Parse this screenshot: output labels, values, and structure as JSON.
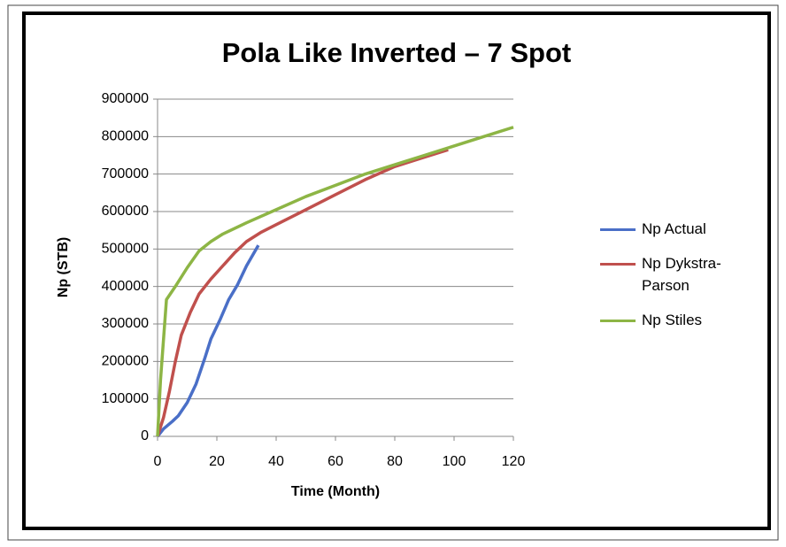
{
  "chart_data": {
    "type": "line",
    "title": "Pola Like Inverted – 7 Spot",
    "x_label": "Time (Month)",
    "y_label": "Np (STB)",
    "xlim": [
      0,
      120
    ],
    "xticks": [
      0,
      20,
      40,
      60,
      80,
      100,
      120
    ],
    "ylim": [
      0,
      900000
    ],
    "yticks": [
      0,
      100000,
      200000,
      300000,
      400000,
      500000,
      600000,
      700000,
      800000,
      900000
    ],
    "grid": true,
    "legend": "right",
    "series": [
      {
        "name": "Np Actual",
        "color": "#4a6fc7",
        "x": [
          0,
          2,
          5,
          7,
          10,
          13,
          16,
          18,
          21,
          24,
          27,
          30,
          34
        ],
        "values": [
          0,
          20000,
          40000,
          55000,
          90000,
          140000,
          210000,
          260000,
          310000,
          365000,
          405000,
          455000,
          510000
        ]
      },
      {
        "name": "Np Dykstra-Parson",
        "color": "#c0504d",
        "x": [
          0,
          2,
          4,
          6,
          8,
          11,
          14,
          18,
          22,
          26,
          30,
          35,
          40,
          50,
          60,
          70,
          80,
          90,
          98
        ],
        "values": [
          0,
          50000,
          120000,
          200000,
          270000,
          330000,
          380000,
          420000,
          455000,
          490000,
          520000,
          545000,
          565000,
          605000,
          645000,
          685000,
          720000,
          745000,
          765000
        ]
      },
      {
        "name": "Np Stiles",
        "color": "#8db545",
        "x": [
          0,
          1,
          3,
          6,
          10,
          14,
          18,
          22,
          30,
          40,
          50,
          60,
          70,
          80,
          90,
          100,
          110,
          120
        ],
        "values": [
          0,
          150000,
          365000,
          400000,
          450000,
          495000,
          520000,
          540000,
          570000,
          605000,
          640000,
          670000,
          700000,
          725000,
          750000,
          775000,
          800000,
          825000
        ]
      }
    ]
  }
}
